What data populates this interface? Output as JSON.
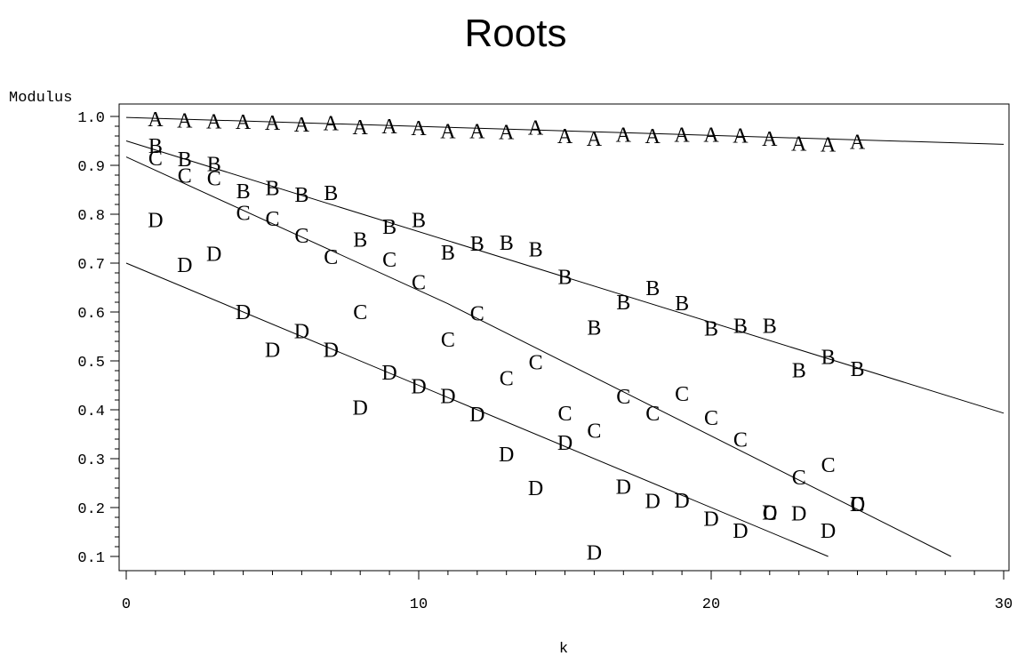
{
  "chart_data": {
    "type": "scatter",
    "title": "Roots",
    "xlabel": "k",
    "ylabel": "Modulus",
    "xlim": [
      0,
      30
    ],
    "ylim": [
      0.08,
      1.02
    ],
    "xticks": [
      0,
      10,
      20,
      30
    ],
    "xtick_labels": [
      "0",
      "10",
      "20",
      "30"
    ],
    "yticks": [
      0.1,
      0.2,
      0.3,
      0.4,
      0.5,
      0.6,
      0.7,
      0.8,
      0.9,
      1.0
    ],
    "ytick_labels": [
      "0.1",
      "0.2",
      "0.3",
      "0.4",
      "0.5",
      "0.6",
      "0.7",
      "0.8",
      "0.9",
      "1.0"
    ],
    "grid": false,
    "series": [
      {
        "name": "A",
        "x": [
          1,
          2,
          3,
          4,
          5,
          6,
          7,
          8,
          9,
          10,
          11,
          12,
          13,
          14,
          15,
          16,
          17,
          18,
          19,
          20,
          21,
          22,
          23,
          24,
          25
        ],
        "y": [
          0.995,
          0.992,
          0.99,
          0.989,
          0.987,
          0.984,
          0.986,
          0.978,
          0.98,
          0.976,
          0.97,
          0.97,
          0.968,
          0.977,
          0.96,
          0.955,
          0.963,
          0.96,
          0.963,
          0.963,
          0.961,
          0.955,
          0.945,
          0.943,
          0.948
        ],
        "fit": [
          [
            0,
            0.998
          ],
          [
            30,
            0.943
          ]
        ]
      },
      {
        "name": "B",
        "x": [
          1,
          2,
          3,
          4,
          5,
          6,
          7,
          8,
          9,
          10,
          11,
          12,
          13,
          14,
          15,
          16,
          17,
          18,
          19,
          20,
          21,
          22,
          23,
          24,
          25
        ],
        "y": [
          0.94,
          0.913,
          0.903,
          0.847,
          0.854,
          0.84,
          0.844,
          0.748,
          0.775,
          0.788,
          0.722,
          0.74,
          0.742,
          0.728,
          0.672,
          0.568,
          0.62,
          0.649,
          0.618,
          0.566,
          0.572,
          0.572,
          0.481,
          0.508,
          0.484
        ],
        "fit": [
          [
            0,
            0.95
          ],
          [
            30,
            0.393
          ]
        ]
      },
      {
        "name": "C",
        "x": [
          1,
          2,
          3,
          4,
          5,
          6,
          7,
          8,
          9,
          10,
          11,
          12,
          13,
          14,
          15,
          16,
          17,
          18,
          19,
          20,
          21,
          22,
          23,
          24,
          25
        ],
        "y": [
          0.915,
          0.879,
          0.874,
          0.803,
          0.791,
          0.756,
          0.713,
          0.6,
          0.707,
          0.661,
          0.544,
          0.597,
          0.465,
          0.497,
          0.393,
          0.357,
          0.427,
          0.393,
          0.433,
          0.384,
          0.339,
          0.189,
          0.262,
          0.287,
          0.207
        ],
        "fit": [
          [
            0,
            0.917
          ],
          [
            11,
            0.617
          ],
          [
            28.2,
            0.1
          ]
        ]
      },
      {
        "name": "D",
        "x": [
          1,
          2,
          3,
          4,
          5,
          6,
          7,
          8,
          9,
          10,
          11,
          12,
          13,
          14,
          15,
          16,
          17,
          18,
          19,
          20,
          21,
          22,
          23,
          24,
          25
        ],
        "y": [
          0.788,
          0.696,
          0.719,
          0.6,
          0.523,
          0.561,
          0.523,
          0.405,
          0.476,
          0.448,
          0.428,
          0.391,
          0.309,
          0.24,
          0.333,
          0.108,
          0.243,
          0.214,
          0.215,
          0.177,
          0.153,
          0.19,
          0.188,
          0.153,
          0.207
        ],
        "fit": [
          [
            0,
            0.7
          ],
          [
            24,
            0.1
          ]
        ]
      }
    ]
  }
}
